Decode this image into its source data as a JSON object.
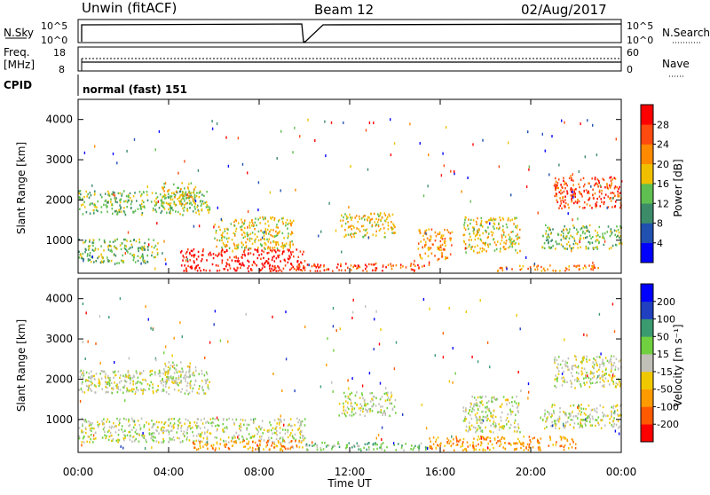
{
  "header": {
    "station": "Unwin (fitACF)",
    "beam": "Beam 12",
    "date": "02/Aug/2017"
  },
  "top_panels": {
    "nsky_label": "N.Sky",
    "nsky_ticks": [
      "10^5",
      "10^0"
    ],
    "nsearch_label": "N.Search",
    "nsearch_ticks": [
      "10^5",
      "10^0"
    ],
    "freq_label_1": "Freq.",
    "freq_label_2": "[MHz]",
    "freq_ticks": [
      "18",
      "8"
    ],
    "nave_label": "Nave",
    "nave_ticks": [
      "60",
      "0"
    ],
    "cpid_label": "CPID",
    "cpid_value": "normal (fast) 151"
  },
  "colors": {
    "power": [
      "#0000ff",
      "#2050b0",
      "#3c8c6a",
      "#5fbf50",
      "#f0c000",
      "#ff8a00",
      "#ff4a10",
      "#ff0000"
    ],
    "velocity": [
      "#ff0000",
      "#ff5a00",
      "#ff9a00",
      "#f0c800",
      "#c0c0b8",
      "#70d040",
      "#3a9a70",
      "#2040c0",
      "#0000ff"
    ]
  },
  "chart_data": [
    {
      "type": "heatmap",
      "title": "Power",
      "xlabel": "Time UT",
      "ylabel": "Slant Range [km]",
      "x_ticks": [
        "00:00",
        "04:00",
        "08:00",
        "12:00",
        "16:00",
        "20:00",
        "00:00"
      ],
      "xlim": [
        0,
        24
      ],
      "ylim": [
        180,
        4500
      ],
      "y_ticks": [
        1000,
        2000,
        3000,
        4000
      ],
      "colorbar_label": "Power [dB]",
      "colorbar_ticks": [
        "4",
        "8",
        "12",
        "16",
        "20",
        "24",
        "28"
      ],
      "colorbar_range": [
        0,
        32
      ],
      "regions": [
        {
          "t0": 0.0,
          "t1": 5.8,
          "r0": 1650,
          "r1": 2250,
          "level": 3,
          "label": "mid-range band early"
        },
        {
          "t0": 3.6,
          "t1": 5.2,
          "r0": 1900,
          "r1": 2450,
          "level": 4,
          "label": "arc near 04:00"
        },
        {
          "t0": 0.0,
          "t1": 3.5,
          "r0": 450,
          "r1": 1050,
          "level": 3,
          "label": "low band early"
        },
        {
          "t0": 4.5,
          "t1": 10.0,
          "r0": 250,
          "r1": 800,
          "level": 7,
          "label": "strong near-range echoes"
        },
        {
          "t0": 6.0,
          "t1": 9.5,
          "r0": 800,
          "r1": 1600,
          "level": 4,
          "label": "mid echoes morning"
        },
        {
          "t0": 9.5,
          "t1": 15.5,
          "r0": 250,
          "r1": 450,
          "level": 6,
          "label": "near-range midday"
        },
        {
          "t0": 11.5,
          "t1": 14.0,
          "r0": 1100,
          "r1": 1700,
          "level": 4,
          "label": "patch near 13:00"
        },
        {
          "t0": 15.0,
          "t1": 16.5,
          "r0": 550,
          "r1": 1300,
          "level": 5,
          "label": "tongue near 16:00"
        },
        {
          "t0": 17.0,
          "t1": 19.5,
          "r0": 700,
          "r1": 1600,
          "level": 4,
          "label": "patch near 18:00"
        },
        {
          "t0": 18.5,
          "t1": 23.0,
          "r0": 250,
          "r1": 400,
          "level": 5,
          "label": "near-range afternoon"
        },
        {
          "t0": 21.0,
          "t1": 24.0,
          "r0": 1800,
          "r1": 2600,
          "level": 6,
          "label": "strong arc late"
        },
        {
          "t0": 20.5,
          "t1": 24.0,
          "r0": 800,
          "r1": 1400,
          "level": 3,
          "label": "late mid-range"
        }
      ]
    },
    {
      "type": "heatmap",
      "title": "Velocity",
      "xlabel": "Time UT",
      "ylabel": "Slant Range [km]",
      "x_ticks": [
        "00:00",
        "04:00",
        "08:00",
        "12:00",
        "16:00",
        "20:00",
        "00:00"
      ],
      "xlim": [
        0,
        24
      ],
      "ylim": [
        180,
        4500
      ],
      "y_ticks": [
        1000,
        2000,
        3000,
        4000
      ],
      "colorbar_label": "Velocity [m s⁻¹]",
      "colorbar_ticks": [
        "200",
        "100",
        "50",
        "15",
        "-15",
        "-50",
        "-100",
        "-200"
      ],
      "regions": [
        {
          "t0": 0.0,
          "t1": 5.8,
          "r0": 1650,
          "r1": 2250,
          "level": 4,
          "label": "ground scatter band"
        },
        {
          "t0": 3.6,
          "t1": 5.2,
          "r0": 1900,
          "r1": 2450,
          "level": 4,
          "label": "arc near 04:00"
        },
        {
          "t0": 0.0,
          "t1": 10.0,
          "r0": 450,
          "r1": 1050,
          "level": 4,
          "label": "low band gray"
        },
        {
          "t0": 5.0,
          "t1": 10.0,
          "r0": 250,
          "r1": 500,
          "level": 2,
          "label": "orange negative"
        },
        {
          "t0": 10.0,
          "t1": 15.5,
          "r0": 250,
          "r1": 450,
          "level": 5,
          "label": "green positive midday"
        },
        {
          "t0": 11.5,
          "t1": 14.0,
          "r0": 1100,
          "r1": 1700,
          "level": 4,
          "label": "gray patch 13:00"
        },
        {
          "t0": 15.5,
          "t1": 22.0,
          "r0": 250,
          "r1": 600,
          "level": 2,
          "label": "orange afternoon"
        },
        {
          "t0": 17.0,
          "t1": 19.5,
          "r0": 700,
          "r1": 1600,
          "level": 4,
          "label": "gray patch 18:00"
        },
        {
          "t0": 21.0,
          "t1": 24.0,
          "r0": 1800,
          "r1": 2600,
          "level": 4,
          "label": "gray arc late"
        },
        {
          "t0": 20.5,
          "t1": 24.0,
          "r0": 800,
          "r1": 1400,
          "level": 4,
          "label": "late gray"
        }
      ]
    }
  ]
}
